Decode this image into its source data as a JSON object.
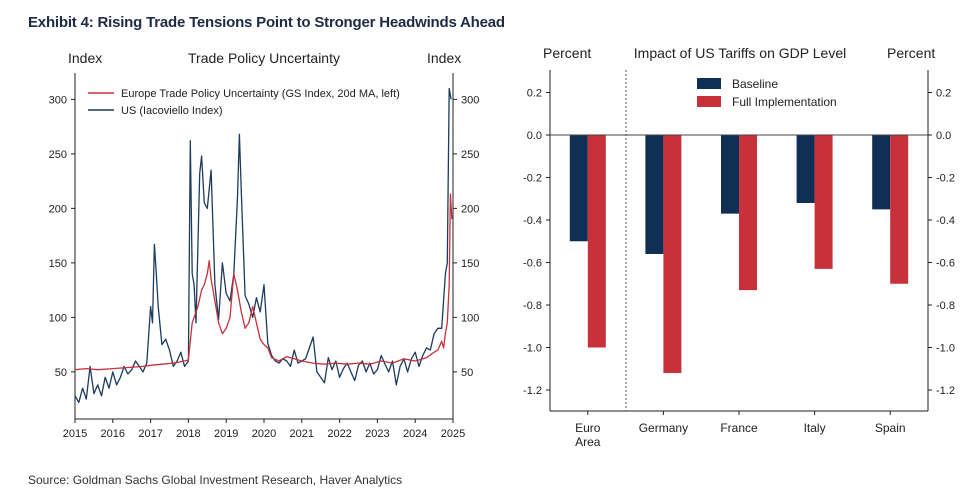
{
  "exhibit_title": "Exhibit 4: Rising Trade Tensions Point to Stronger Headwinds Ahead",
  "source": "Source: Goldman Sachs Global Investment Research, Haver Analytics",
  "colors": {
    "europe": "#c8313a",
    "us": "#1c3b5e",
    "baseline": "#0f2f57",
    "full": "#c8313a"
  },
  "chart_data": [
    {
      "type": "line",
      "title": "Trade Policy Uncertainty",
      "ylabel_left": "Index",
      "ylabel_right": "Index",
      "xlim": [
        2015,
        2025
      ],
      "ylim": [
        15,
        310
      ],
      "x_ticks": [
        "2015",
        "2016",
        "2017",
        "2018",
        "2019",
        "2020",
        "2021",
        "2022",
        "2023",
        "2024",
        "2025"
      ],
      "y_ticks": [
        50,
        100,
        150,
        200,
        250,
        300
      ],
      "legend_position": "top-left",
      "grid": false,
      "series": [
        {
          "name": "Europe Trade Policy Uncertainty (GS Index, 20d MA, left)",
          "x": [
            2015.0,
            2015.3,
            2015.6,
            2016.0,
            2016.4,
            2016.8,
            2017.0,
            2017.3,
            2017.6,
            2017.9,
            2018.0,
            2018.1,
            2018.25,
            2018.35,
            2018.42,
            2018.5,
            2018.55,
            2018.6,
            2018.7,
            2018.8,
            2018.9,
            2019.0,
            2019.1,
            2019.2,
            2019.3,
            2019.4,
            2019.5,
            2019.6,
            2019.7,
            2019.8,
            2019.9,
            2020.0,
            2020.1,
            2020.2,
            2020.4,
            2020.6,
            2020.8,
            2021.0,
            2021.3,
            2021.6,
            2021.9,
            2022.2,
            2022.5,
            2022.8,
            2023.1,
            2023.4,
            2023.7,
            2024.0,
            2024.3,
            2024.5,
            2024.6,
            2024.7,
            2024.75,
            2024.8,
            2024.85,
            2024.9,
            2024.93,
            2024.97
          ],
          "values": [
            52,
            53,
            52,
            53,
            54,
            55,
            56,
            57,
            58,
            60,
            61,
            95,
            110,
            125,
            130,
            140,
            152,
            135,
            115,
            95,
            85,
            90,
            100,
            140,
            125,
            105,
            90,
            95,
            110,
            95,
            80,
            75,
            72,
            63,
            60,
            64,
            62,
            60,
            58,
            57,
            58,
            57,
            58,
            57,
            60,
            58,
            62,
            60,
            63,
            68,
            70,
            78,
            72,
            85,
            95,
            130,
            213,
            190
          ]
        },
        {
          "name": "US (Iacoviello Index)",
          "x": [
            2015.0,
            2015.1,
            2015.2,
            2015.3,
            2015.4,
            2015.5,
            2015.6,
            2015.7,
            2015.8,
            2015.9,
            2016.0,
            2016.1,
            2016.2,
            2016.3,
            2016.4,
            2016.5,
            2016.6,
            2016.7,
            2016.8,
            2016.9,
            2017.0,
            2017.05,
            2017.1,
            2017.15,
            2017.2,
            2017.3,
            2017.4,
            2017.5,
            2017.6,
            2017.7,
            2017.8,
            2017.9,
            2018.0,
            2018.05,
            2018.1,
            2018.15,
            2018.2,
            2018.3,
            2018.35,
            2018.42,
            2018.5,
            2018.6,
            2018.7,
            2018.8,
            2018.9,
            2019.0,
            2019.1,
            2019.2,
            2019.3,
            2019.35,
            2019.4,
            2019.5,
            2019.6,
            2019.7,
            2019.8,
            2019.9,
            2020.0,
            2020.1,
            2020.2,
            2020.3,
            2020.4,
            2020.5,
            2020.6,
            2020.7,
            2020.8,
            2020.9,
            2021.0,
            2021.1,
            2021.2,
            2021.3,
            2021.4,
            2021.5,
            2021.6,
            2021.7,
            2021.8,
            2021.9,
            2022.0,
            2022.1,
            2022.2,
            2022.3,
            2022.4,
            2022.5,
            2022.6,
            2022.7,
            2022.8,
            2022.9,
            2023.0,
            2023.1,
            2023.2,
            2023.3,
            2023.4,
            2023.5,
            2023.6,
            2023.7,
            2023.8,
            2023.9,
            2024.0,
            2024.1,
            2024.2,
            2024.3,
            2024.4,
            2024.5,
            2024.6,
            2024.7,
            2024.8,
            2024.85,
            2024.9,
            2024.95
          ],
          "values": [
            28,
            22,
            35,
            25,
            55,
            30,
            38,
            28,
            45,
            35,
            50,
            38,
            45,
            55,
            48,
            52,
            60,
            55,
            50,
            58,
            110,
            95,
            167,
            140,
            110,
            75,
            80,
            70,
            55,
            60,
            68,
            55,
            60,
            262,
            140,
            130,
            95,
            232,
            248,
            205,
            200,
            235,
            130,
            98,
            150,
            122,
            115,
            140,
            210,
            268,
            215,
            120,
            112,
            100,
            118,
            105,
            130,
            76,
            65,
            60,
            58,
            62,
            60,
            55,
            70,
            58,
            60,
            62,
            72,
            82,
            50,
            45,
            40,
            63,
            52,
            60,
            45,
            53,
            58,
            50,
            42,
            56,
            60,
            50,
            58,
            48,
            52,
            65,
            57,
            50,
            60,
            38,
            55,
            62,
            50,
            62,
            68,
            55,
            65,
            72,
            70,
            85,
            90,
            90,
            140,
            150,
            310,
            300
          ]
        }
      ]
    },
    {
      "type": "bar",
      "title": "Impact of US Tariffs on GDP Level",
      "ylabel_left": "Percent",
      "ylabel_right": "Percent",
      "ylim": [
        -1.3,
        0.3
      ],
      "y_ticks": [
        0.2,
        0.0,
        -0.2,
        -0.4,
        -0.6,
        -0.8,
        -1.0,
        -1.2
      ],
      "y_tick_labels": [
        "0.2",
        "0.0",
        "-0.2",
        "-0.4",
        "-0.6",
        "-0.8",
        "-1.0",
        "-1.2"
      ],
      "categories": [
        "Euro Area",
        "Germany",
        "France",
        "Italy",
        "Spain"
      ],
      "category_lines": [
        [
          "Euro",
          "Area"
        ],
        [
          "Germany"
        ],
        [
          "France"
        ],
        [
          "Italy"
        ],
        [
          "Spain"
        ]
      ],
      "legend_position": "top-center",
      "grid": false,
      "series": [
        {
          "name": "Baseline",
          "values": [
            -0.5,
            -0.56,
            -0.37,
            -0.32,
            -0.35
          ]
        },
        {
          "name": "Full Implementation",
          "values": [
            -1.0,
            -1.12,
            -0.73,
            -0.63,
            -0.7
          ]
        }
      ]
    }
  ]
}
